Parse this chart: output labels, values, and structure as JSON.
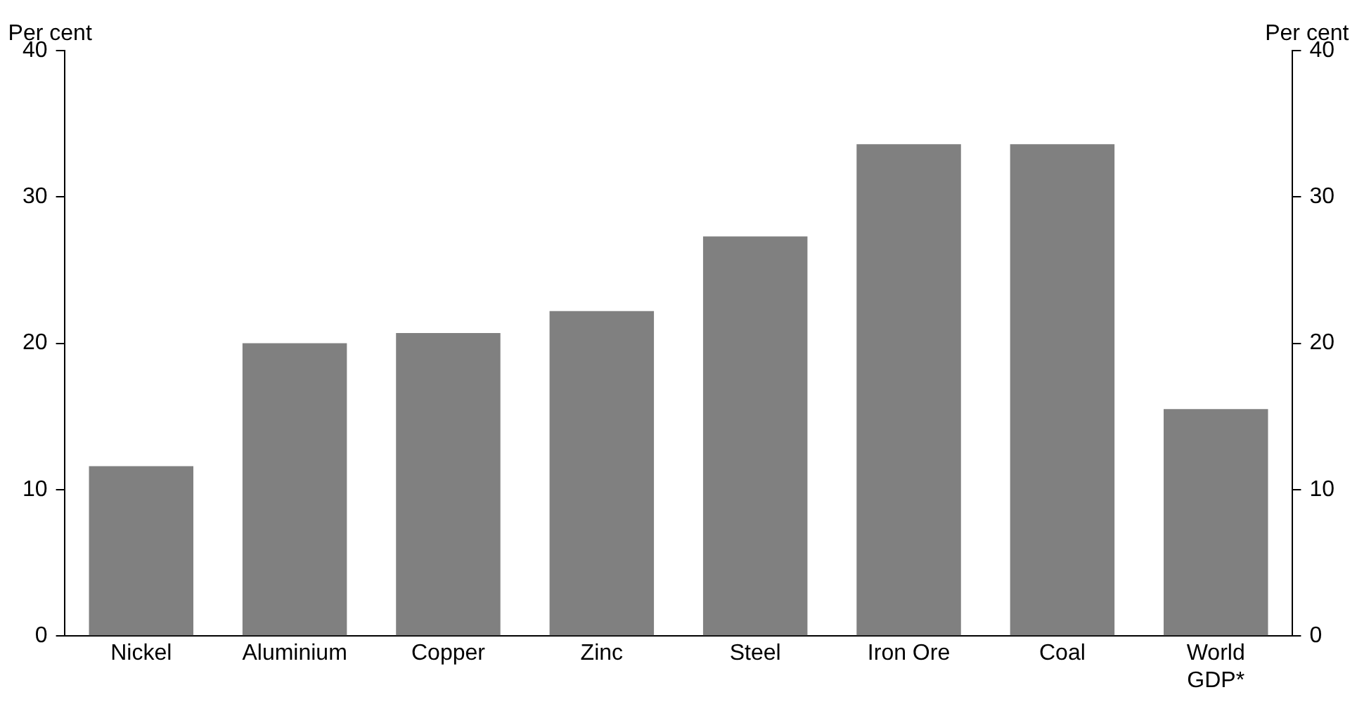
{
  "chart_data": {
    "type": "bar",
    "ylabel": "Per cent",
    "y2label": "Per cent",
    "categories": [
      "Nickel",
      "Aluminium",
      "Copper",
      "Zinc",
      "Steel",
      "Iron Ore",
      "Coal",
      "World GDP*"
    ],
    "values": [
      11.6,
      20.0,
      20.7,
      22.2,
      27.3,
      33.6,
      33.6,
      15.5
    ],
    "color": "#808080",
    "ylim": [
      0,
      40
    ],
    "yticks": [
      0,
      10,
      20,
      30,
      40
    ],
    "y2lim": [
      0,
      40
    ],
    "y2ticks": [
      0,
      10,
      20,
      30,
      40
    ],
    "grid": false,
    "legend": false
  }
}
